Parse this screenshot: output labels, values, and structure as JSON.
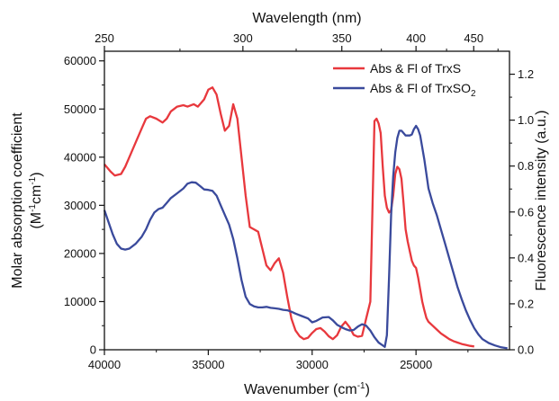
{
  "chart_data": {
    "type": "line",
    "title": "",
    "axes": {
      "x_bottom": {
        "label": "Wavenumber (cm",
        "label_sup": "-1",
        "label_end": ")",
        "range": [
          40000,
          20500
        ],
        "reversed": true,
        "ticks": [
          40000,
          35000,
          30000,
          25000
        ],
        "tick_labels": [
          "40000",
          "35000",
          "30000",
          "25000"
        ]
      },
      "x_top": {
        "label": "Wavelength (nm)",
        "ticks": [
          250,
          300,
          350,
          400,
          450
        ],
        "tick_labels": [
          "250",
          "300",
          "350",
          "400",
          "450"
        ]
      },
      "y_left": {
        "label_line1": "Molar absorption coefficient",
        "label_line2_parts": [
          "(M",
          "-1",
          "cm",
          "-1",
          ")"
        ],
        "range": [
          0,
          62000
        ],
        "ticks": [
          0,
          10000,
          20000,
          30000,
          40000,
          50000,
          60000
        ],
        "tick_labels": [
          "0",
          "10000",
          "20000",
          "30000",
          "40000",
          "50000",
          "60000"
        ]
      },
      "y_right": {
        "label": "Fluorescence intensity (a.u.)",
        "range": [
          0,
          1.3
        ],
        "ticks": [
          0,
          0.2,
          0.4,
          0.6,
          0.8,
          1.0,
          1.2
        ],
        "tick_labels": [
          "0.0",
          "0.2",
          "0.4",
          "0.6",
          "0.8",
          "1.0",
          "1.2"
        ]
      }
    },
    "legend": {
      "position": "top-right",
      "entries": [
        {
          "text": "Abs & Fl of TrxS",
          "color": "#e8383d"
        },
        {
          "text": "Abs & Fl of TrxSO",
          "sub": "2",
          "color": "#3a4a9c"
        }
      ]
    },
    "grid": false,
    "series": [
      {
        "name": "Abs & Fl of TrxS",
        "color": "#e8383d",
        "x": [
          40000,
          39700,
          39500,
          39200,
          39000,
          38800,
          38500,
          38200,
          38000,
          37800,
          37500,
          37200,
          37000,
          36800,
          36500,
          36200,
          36000,
          35700,
          35500,
          35200,
          35000,
          34800,
          34600,
          34400,
          34200,
          34000,
          33800,
          33600,
          33400,
          33200,
          33000,
          32800,
          32600,
          32400,
          32200,
          32000,
          31800,
          31600,
          31400,
          31200,
          31000,
          30800,
          30600,
          30400,
          30200,
          30000,
          29800,
          29600,
          29400,
          29200,
          29000,
          28800,
          28600,
          28400,
          28200,
          28000,
          27800,
          27600,
          27400,
          27200,
          27000,
          26900,
          26800,
          26700,
          26600,
          26500,
          26400,
          26300,
          26200,
          26100,
          26000,
          25900,
          25800,
          25700,
          25600,
          25500,
          25400,
          25300,
          25200,
          25100,
          25000,
          24900,
          24800,
          24700,
          24600,
          24500,
          24400,
          24200,
          24000,
          23800,
          23600,
          23400,
          23200,
          23000,
          22800,
          22600,
          22400,
          22200
        ],
        "y": [
          38500,
          37000,
          36200,
          36500,
          38000,
          40000,
          43000,
          46000,
          48000,
          48500,
          48000,
          47200,
          48000,
          49500,
          50500,
          50800,
          50500,
          51000,
          50500,
          52000,
          54000,
          54500,
          53000,
          49000,
          45500,
          46500,
          51000,
          48000,
          40000,
          32000,
          25500,
          25000,
          24500,
          21000,
          17500,
          16500,
          18000,
          19000,
          16000,
          11000,
          6500,
          4000,
          2800,
          2200,
          2500,
          3500,
          4300,
          4500,
          3800,
          2800,
          2200,
          3000,
          4800,
          5800,
          4700,
          3100,
          2700,
          2900,
          6500,
          10000,
          47500,
          48000,
          47000,
          45000,
          38000,
          32000,
          29500,
          28500,
          29000,
          32000,
          36500,
          38000,
          37500,
          35500,
          30500,
          25000,
          22500,
          20500,
          18500,
          17500,
          17000,
          15000,
          12500,
          10000,
          8200,
          6600,
          5800,
          5000,
          4200,
          3400,
          2800,
          2200,
          1800,
          1500,
          1200,
          1000,
          800,
          700
        ]
      },
      {
        "name": "Abs & Fl of TrxSO2",
        "color": "#3a4a9c",
        "x": [
          40000,
          39800,
          39600,
          39400,
          39200,
          39000,
          38800,
          38500,
          38200,
          38000,
          37800,
          37600,
          37400,
          37200,
          37000,
          36800,
          36500,
          36200,
          36000,
          35800,
          35600,
          35400,
          35200,
          35000,
          34800,
          34600,
          34400,
          34200,
          34000,
          33800,
          33600,
          33400,
          33200,
          33000,
          32800,
          32600,
          32400,
          32200,
          32000,
          31800,
          31600,
          31400,
          31200,
          31000,
          30800,
          30500,
          30200,
          30000,
          29800,
          29500,
          29200,
          29000,
          28800,
          28600,
          28400,
          28200,
          28000,
          27800,
          27600,
          27400,
          27200,
          27000,
          26800,
          26600,
          26500,
          26400,
          26300,
          26200,
          26100,
          26000,
          25900,
          25800,
          25700,
          25600,
          25500,
          25400,
          25300,
          25200,
          25100,
          25000,
          24900,
          24800,
          24700,
          24600,
          24500,
          24400,
          24200,
          24000,
          23800,
          23600,
          23400,
          23200,
          23000,
          22800,
          22600,
          22400,
          22200,
          22000,
          21800,
          21500,
          21200,
          20900,
          20600
        ],
        "y": [
          29000,
          26500,
          24000,
          22000,
          21000,
          20800,
          21000,
          22000,
          23500,
          25000,
          27000,
          28500,
          29200,
          29500,
          30500,
          31500,
          32500,
          33500,
          34500,
          34800,
          34700,
          34000,
          33300,
          33200,
          33000,
          32000,
          30000,
          28000,
          26000,
          23000,
          19000,
          14500,
          11000,
          9500,
          9000,
          8800,
          8800,
          8900,
          8700,
          8600,
          8500,
          8300,
          8200,
          7900,
          7500,
          7000,
          6500,
          5700,
          6000,
          6700,
          6800,
          6100,
          5200,
          4700,
          4300,
          4000,
          4100,
          4800,
          5300,
          5000,
          4000,
          2600,
          1500,
          900,
          600,
          3000,
          15000,
          28000,
          36000,
          41000,
          44000,
          45500,
          45500,
          45000,
          44500,
          44500,
          44500,
          44700,
          45800,
          46500,
          45800,
          44500,
          42000,
          39500,
          36500,
          33500,
          30500,
          28000,
          25000,
          22000,
          19000,
          16000,
          13000,
          10500,
          8200,
          6200,
          4500,
          3200,
          2200,
          1400,
          900,
          500,
          300
        ]
      }
    ]
  }
}
